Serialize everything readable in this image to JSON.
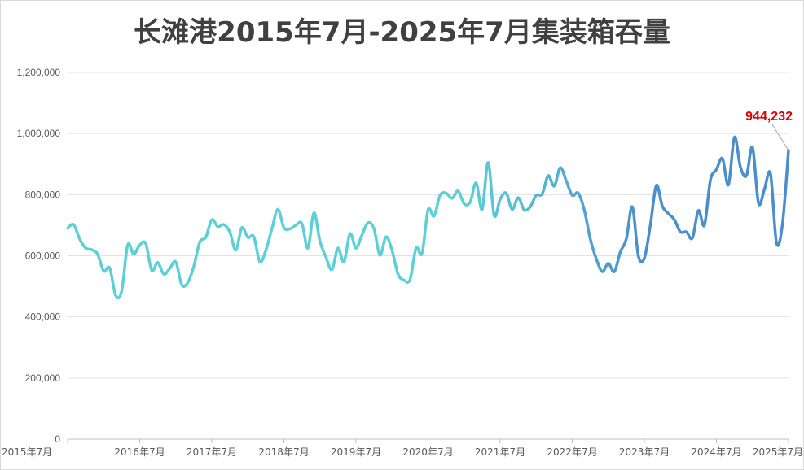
{
  "title": "长滩港2015年7月-2025年7月集装箱吞量",
  "colors": {
    "line_start": "#5cd0d6",
    "line_end": "#4a8fcb",
    "grid": "#e3e3e3",
    "axis": "#bfbfbf",
    "callout": "#e00000"
  },
  "chart_data": {
    "type": "line",
    "title": "长滩港2015年7月-2025年7月集装箱吞量",
    "xlabel": "",
    "ylabel": "",
    "ylim": [
      0,
      1200000
    ],
    "yticks": [
      0,
      200000,
      400000,
      600000,
      800000,
      1000000,
      1200000
    ],
    "ytick_labels": [
      "0",
      "200,000",
      "400,000",
      "600,000",
      "800,000",
      "1,000,000",
      "1,200,000"
    ],
    "xtick_labels": [
      "2015年7月",
      "2016年7月",
      "2017年7月",
      "2018年7月",
      "2019年7月",
      "2020年7月",
      "2021年7月",
      "2022年7月",
      "2023年7月",
      "2024年7月",
      "2025年7月"
    ],
    "grid": true,
    "start_period": "2015年7月",
    "end_period": "2025年7月",
    "values": [
      690000,
      702000,
      655000,
      625000,
      620000,
      605000,
      550000,
      560000,
      470000,
      485000,
      635000,
      605000,
      635000,
      640000,
      552000,
      578000,
      540000,
      558000,
      580000,
      505000,
      512000,
      565000,
      645000,
      660000,
      718000,
      695000,
      702000,
      678000,
      618000,
      692000,
      660000,
      662000,
      580000,
      618000,
      688000,
      752000,
      692000,
      688000,
      700000,
      705000,
      625000,
      740000,
      648000,
      595000,
      555000,
      625000,
      580000,
      672000,
      625000,
      668000,
      708000,
      688000,
      602000,
      662000,
      618000,
      540000,
      520000,
      522000,
      625000,
      608000,
      750000,
      730000,
      798000,
      805000,
      788000,
      812000,
      770000,
      775000,
      838000,
      752000,
      905000,
      732000,
      785000,
      805000,
      752000,
      790000,
      750000,
      760000,
      798000,
      802000,
      862000,
      828000,
      888000,
      845000,
      798000,
      805000,
      750000,
      655000,
      590000,
      548000,
      575000,
      548000,
      612000,
      655000,
      760000,
      600000,
      592000,
      700000,
      830000,
      762000,
      738000,
      718000,
      678000,
      678000,
      658000,
      748000,
      700000,
      848000,
      882000,
      918000,
      832000,
      988000,
      890000,
      862000,
      955000,
      772000,
      818000,
      868000,
      642000,
      705000,
      944232
    ],
    "annotation": {
      "label": "944,232",
      "value": 944232,
      "position": "last-point"
    }
  }
}
